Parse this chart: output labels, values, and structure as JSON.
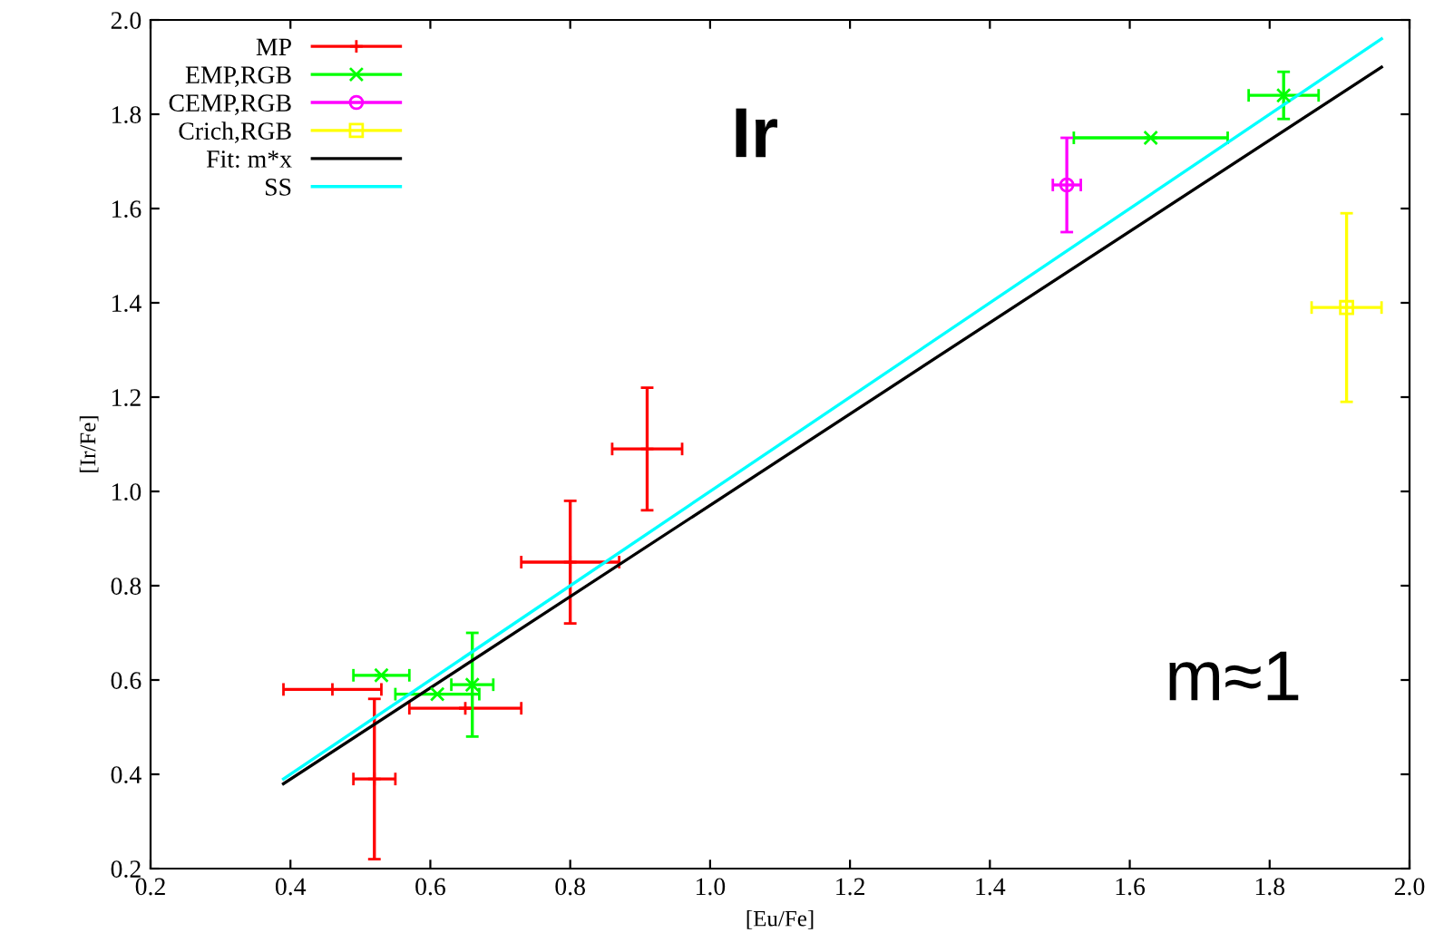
{
  "chart_data": {
    "type": "scatter",
    "xlabel": "[Eu/Fe]",
    "ylabel": "[Ir/Fe]",
    "xlim": [
      0.2,
      2.0
    ],
    "xticks": [
      {
        "value": 0.2,
        "label": "0.2"
      },
      {
        "value": 0.4,
        "label": "0.4"
      },
      {
        "value": 0.6,
        "label": "0.6"
      },
      {
        "value": 0.8,
        "label": "0.8"
      },
      {
        "value": 1.0,
        "label": "1.0"
      },
      {
        "value": 1.2,
        "label": "1.2"
      },
      {
        "value": 1.4,
        "label": "1.4"
      },
      {
        "value": 1.6,
        "label": "1.6"
      },
      {
        "value": 1.8,
        "label": "1.8"
      },
      {
        "value": 2.0,
        "label": "2.0"
      }
    ],
    "ylim": [
      0.2,
      2.0
    ],
    "yticks": [
      {
        "value": 0.2,
        "label": "0.2"
      },
      {
        "value": 0.4,
        "label": "0.4"
      },
      {
        "value": 0.6,
        "label": "0.6"
      },
      {
        "value": 0.8,
        "label": "0.8"
      },
      {
        "value": 1.0,
        "label": "1.0"
      },
      {
        "value": 1.2,
        "label": "1.2"
      },
      {
        "value": 1.4,
        "label": "1.4"
      },
      {
        "value": 1.6,
        "label": "1.6"
      },
      {
        "value": 1.8,
        "label": "1.8"
      },
      {
        "value": 2.0,
        "label": "2.0"
      }
    ],
    "grid": false,
    "legend": "top left",
    "annotations": [
      "Ir",
      "m≈1"
    ],
    "series": [
      {
        "name": "MP",
        "color": "#ff0000",
        "marker": "cross",
        "x": [
          0.46,
          0.52,
          0.65,
          0.8,
          0.91
        ],
        "values": [
          0.58,
          0.39,
          0.54,
          0.85,
          1.09
        ],
        "xerrors": [
          [
            0.39,
            0.53
          ],
          [
            0.49,
            0.55
          ],
          [
            0.57,
            0.73
          ],
          [
            0.73,
            0.87
          ],
          [
            0.86,
            0.96
          ]
        ],
        "errors": [
          null,
          [
            0.22,
            0.56
          ],
          null,
          [
            0.72,
            0.98
          ],
          [
            0.96,
            1.22
          ]
        ]
      },
      {
        "name": "EMP,RGB",
        "color": "#00ff00",
        "marker": "x",
        "x": [
          0.53,
          0.61,
          0.66,
          1.63,
          1.82
        ],
        "values": [
          0.61,
          0.57,
          0.59,
          1.75,
          1.84
        ],
        "xerrors": [
          [
            0.49,
            0.57
          ],
          [
            0.55,
            0.67
          ],
          [
            0.63,
            0.69
          ],
          [
            1.52,
            1.74
          ],
          [
            1.77,
            1.87
          ]
        ],
        "errors": [
          null,
          null,
          [
            0.48,
            0.7
          ],
          null,
          [
            1.79,
            1.89
          ]
        ]
      },
      {
        "name": "CEMP,RGB",
        "color": "#ff00ff",
        "marker": "circle",
        "x": [
          1.51
        ],
        "values": [
          1.65
        ],
        "xerrors": [
          [
            1.49,
            1.53
          ]
        ],
        "errors": [
          [
            1.55,
            1.75
          ]
        ]
      },
      {
        "name": "Crich,RGB",
        "color": "#ffff00",
        "marker": "square",
        "x": [
          1.91
        ],
        "values": [
          1.39
        ],
        "xerrors": [
          [
            1.86,
            1.96
          ]
        ],
        "errors": [
          [
            1.19,
            1.59
          ]
        ]
      },
      {
        "name": "Fit: m*x",
        "type": "line",
        "color": "#000000",
        "x": [
          0.39,
          1.96
        ],
        "values": [
          0.38,
          1.9
        ]
      },
      {
        "name": "SS",
        "type": "line",
        "color": "#00ffff",
        "x": [
          0.39,
          1.96
        ],
        "values": [
          0.39,
          1.96
        ]
      }
    ]
  }
}
